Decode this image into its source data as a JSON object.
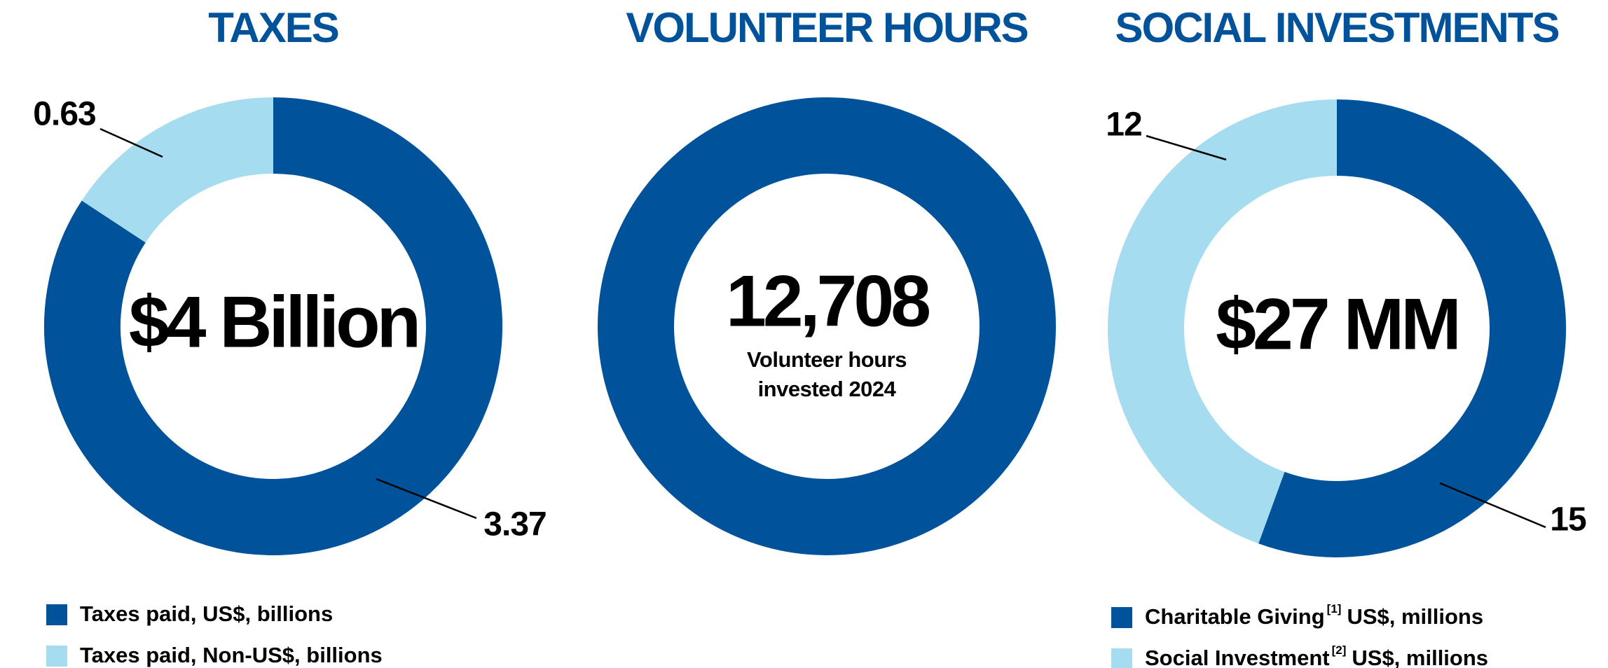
{
  "chart_data": [
    {
      "type": "pie",
      "title": "TAXES",
      "center_label": "$4 Billion",
      "categories": [
        "Taxes paid, US$, billions",
        "Taxes paid, Non-US$, billions"
      ],
      "values": [
        3.37,
        0.63
      ],
      "colors": [
        "#00539b",
        "#a6dcf0"
      ]
    },
    {
      "type": "pie",
      "title": "VOLUNTEER HOURS",
      "center_caption": [
        "Volunteer hours",
        "invested 2024"
      ],
      "categories": [
        null
      ],
      "values": [
        12708
      ],
      "value_labels": [
        "12,708"
      ],
      "colors": [
        "#00539b"
      ]
    },
    {
      "type": "pie",
      "title": "SOCIAL INVESTMENTS",
      "center_label": "$27 MM",
      "categories": [
        "Charitable Giving",
        "Social Investment"
      ],
      "footnotes": [
        "[1]",
        "[2]"
      ],
      "legend_suffix": "US$, millions",
      "values": [
        15,
        12
      ],
      "colors": [
        "#00539b",
        "#a6dcf0"
      ]
    }
  ]
}
